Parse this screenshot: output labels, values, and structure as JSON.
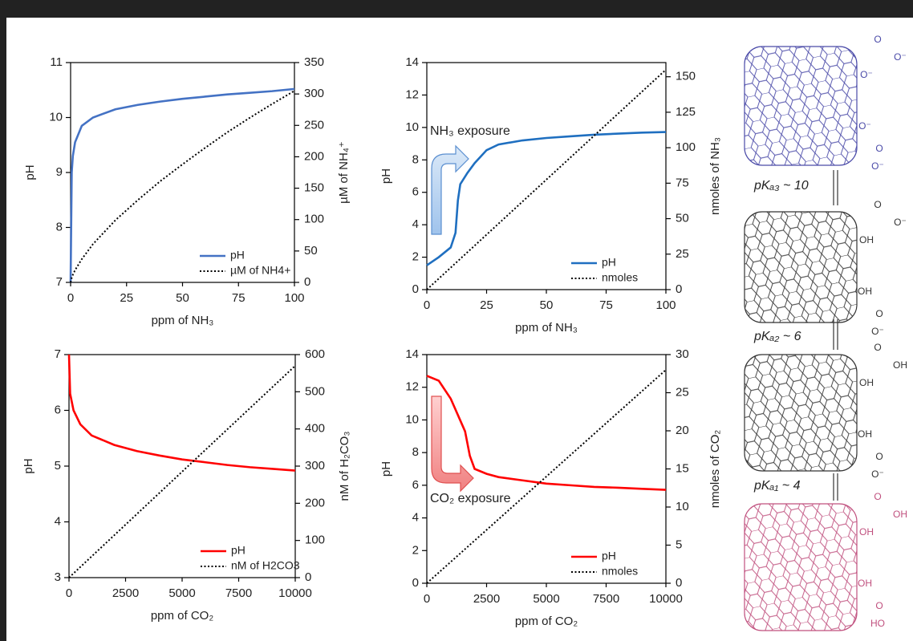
{
  "chart_data": [
    {
      "type": "line",
      "x_label": "ppm of NH₃",
      "y_label": "pH",
      "y2_label": "µM of NH₄⁺",
      "x": [
        0,
        0.5,
        1,
        2,
        5,
        10,
        20,
        30,
        40,
        50,
        60,
        70,
        80,
        90,
        100
      ],
      "xlim": [
        0,
        100
      ],
      "xticks": [
        0,
        25,
        50,
        75,
        100
      ],
      "ylim": [
        7,
        11
      ],
      "yticks": [
        7,
        8,
        9,
        10,
        11
      ],
      "y2lim": [
        0,
        350
      ],
      "y2ticks": [
        0,
        50,
        100,
        150,
        200,
        250,
        300,
        350
      ],
      "legend": "lower right",
      "series": [
        {
          "name": "pH",
          "color": "#4472c4",
          "style": "solid",
          "values": [
            7,
            9.0,
            9.3,
            9.55,
            9.85,
            10.0,
            10.15,
            10.23,
            10.29,
            10.34,
            10.38,
            10.42,
            10.45,
            10.48,
            10.52
          ]
        },
        {
          "name": "µM of NH4+",
          "color": "#000000",
          "style": "dotted",
          "axis": "y2",
          "values": [
            0,
            7.5,
            12,
            19.6,
            37,
            61,
            99,
            131,
            161,
            188,
            214,
            239,
            262,
            284,
            305
          ]
        }
      ]
    },
    {
      "type": "line",
      "x_label": "ppm of NH₃",
      "y_label": "pH",
      "y2_label": "nmoles of NH₃",
      "annotation": "NH₃ exposure",
      "x": [
        0,
        5,
        10,
        12,
        13,
        14,
        17,
        20,
        25,
        30,
        40,
        50,
        60,
        70,
        80,
        90,
        100
      ],
      "xlim": [
        0,
        100
      ],
      "xticks": [
        0,
        25,
        50,
        75,
        100
      ],
      "ylim": [
        0,
        14
      ],
      "yticks": [
        0,
        2,
        4,
        6,
        8,
        10,
        12,
        14
      ],
      "y2lim": [
        0,
        160
      ],
      "y2ticks": [
        0,
        25,
        50,
        75,
        100,
        125,
        150
      ],
      "legend": "lower right",
      "series": [
        {
          "name": "pH",
          "color": "#1f6fc0",
          "style": "solid",
          "values": [
            1.5,
            2.0,
            2.6,
            3.5,
            5.5,
            6.5,
            7.2,
            7.8,
            8.6,
            8.95,
            9.2,
            9.35,
            9.45,
            9.55,
            9.62,
            9.68,
            9.72
          ]
        },
        {
          "name": "nmoles",
          "color": "#000000",
          "style": "dotted",
          "axis": "y2",
          "values": [
            0,
            7.75,
            15.5,
            18.6,
            20.15,
            21.7,
            26.35,
            31,
            38.75,
            46.5,
            62,
            77.5,
            93,
            108.5,
            124,
            139.5,
            155
          ]
        }
      ]
    },
    {
      "type": "line",
      "x_label": "ppm of CO₂",
      "y_label": "pH",
      "y2_label": "nM of H₂CO₃",
      "x": [
        0,
        50,
        200,
        500,
        1000,
        2000,
        3000,
        4000,
        5000,
        6000,
        7000,
        8000,
        9000,
        10000
      ],
      "xlim": [
        0,
        10000
      ],
      "xticks": [
        0,
        2500,
        5000,
        7500,
        10000
      ],
      "ylim": [
        3,
        7
      ],
      "yticks": [
        3,
        4,
        5,
        6,
        7
      ],
      "y2lim": [
        0,
        600
      ],
      "y2ticks": [
        0,
        100,
        200,
        300,
        400,
        500,
        600
      ],
      "legend": "lower right",
      "series": [
        {
          "name": "pH",
          "color": "#ff0000",
          "style": "solid",
          "values": [
            7,
            6.3,
            6.0,
            5.75,
            5.55,
            5.38,
            5.27,
            5.19,
            5.12,
            5.07,
            5.02,
            4.98,
            4.95,
            4.92
          ]
        },
        {
          "name": "nM of H2CO3",
          "color": "#000000",
          "style": "dotted",
          "axis": "y2",
          "values": [
            0,
            2.85,
            11.4,
            28.5,
            57,
            114,
            171,
            228,
            285,
            342,
            399,
            456,
            513,
            570
          ]
        }
      ]
    },
    {
      "type": "line",
      "x_label": "ppm of CO₂",
      "y_label": "pH",
      "y2_label": "nmoles of CO₂",
      "annotation": "CO₂ exposure",
      "x": [
        0,
        500,
        1000,
        1300,
        1600,
        1800,
        2000,
        2500,
        3000,
        4000,
        5000,
        6000,
        7000,
        8000,
        9000,
        10000
      ],
      "xlim": [
        0,
        10000
      ],
      "xticks": [
        0,
        2500,
        5000,
        7500,
        10000
      ],
      "ylim": [
        0,
        14
      ],
      "yticks": [
        0,
        2,
        4,
        6,
        8,
        10,
        12,
        14
      ],
      "y2lim": [
        0,
        30
      ],
      "y2ticks": [
        0,
        5,
        10,
        15,
        20,
        25,
        30
      ],
      "legend": "lower right",
      "series": [
        {
          "name": "pH",
          "color": "#ff0000",
          "style": "solid",
          "values": [
            12.7,
            12.4,
            11.3,
            10.3,
            9.3,
            7.8,
            7.0,
            6.7,
            6.5,
            6.3,
            6.1,
            6.0,
            5.9,
            5.85,
            5.78,
            5.72
          ]
        },
        {
          "name": "nmoles",
          "color": "#000000",
          "style": "dotted",
          "axis": "y2",
          "values": [
            0,
            1.4,
            2.8,
            3.64,
            4.48,
            5.04,
            5.6,
            7,
            8.4,
            11.2,
            14,
            16.8,
            19.6,
            22.4,
            25.2,
            28
          ]
        }
      ]
    }
  ],
  "diagram": {
    "transitions": [
      "pKₐ₃ ~ 10",
      "pKₐ₂ ~ 6",
      "pKₐ₁ ~ 4"
    ],
    "tubes": [
      {
        "groups": [
          "O",
          "O⁻",
          "O⁻",
          "O⁻",
          "O",
          "O⁻"
        ]
      },
      {
        "groups": [
          "O",
          "O⁻",
          "OH",
          "OH",
          "O",
          "O⁻"
        ]
      },
      {
        "groups": [
          "O",
          "OH",
          "OH",
          "OH",
          "O",
          "O⁻"
        ]
      },
      {
        "groups": [
          "O",
          "OH",
          "OH",
          "OH",
          "O",
          "HO"
        ]
      }
    ]
  }
}
